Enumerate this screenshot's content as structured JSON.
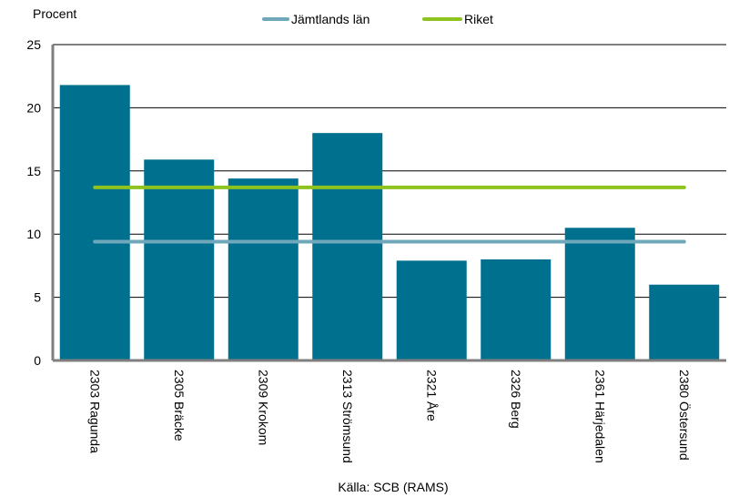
{
  "chart_data": {
    "type": "bar",
    "ylabel": "Procent",
    "ylim": [
      0,
      25
    ],
    "yticks": [
      0,
      5,
      10,
      15,
      20,
      25
    ],
    "grid": true,
    "legend_position": "top-center",
    "categories": [
      "2303 Ragunda",
      "2305 Bräcke",
      "2309 Krokom",
      "2313 Strömsund",
      "2321 Åre",
      "2326 Berg",
      "2361 Härjedalen",
      "2380 Östersund"
    ],
    "series": [
      {
        "values": [
          21.8,
          15.9,
          14.4,
          18.0,
          7.9,
          8.0,
          10.5,
          6.0
        ],
        "color": "#00708f"
      }
    ],
    "reference_lines": [
      {
        "name": "Jämtlands län",
        "value": 9.4,
        "color": "#6fa8bb"
      },
      {
        "name": "Riket",
        "value": 13.7,
        "color": "#8dc21f"
      }
    ],
    "source": "Källa: SCB (RAMS)"
  }
}
